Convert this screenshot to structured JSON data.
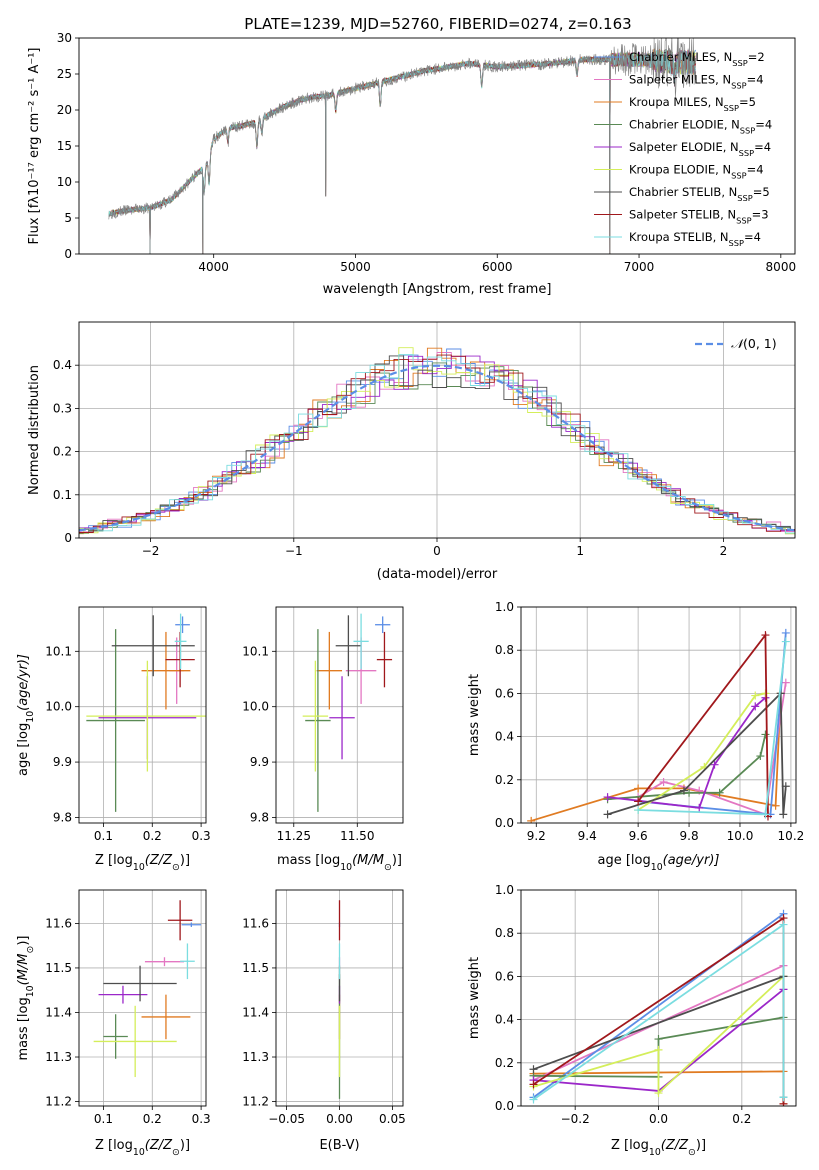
{
  "figure": {
    "title": "PLATE=1239, MJD=52760, FIBERID=0274, z=0.163"
  },
  "colors": {
    "Chabrier MILES": "#5b8ee6",
    "Salpeter MILES": "#e377c2",
    "Kroupa MILES": "#e07b22",
    "Chabrier ELODIE": "#5a8a55",
    "Salpeter ELODIE": "#9b27c9",
    "Kroupa ELODIE": "#d4ee5a",
    "Chabrier STELIB": "#4d4d4d",
    "Salpeter STELIB": "#a0181c",
    "Kroupa STELIB": "#7bdde0",
    "data": "#808080"
  },
  "chart_data": [
    {
      "id": "spectrum",
      "type": "line",
      "title": "PLATE=1239, MJD=52760, FIBERID=0274, z=0.163",
      "xlabel": "wavelength [Angstrom, rest frame]",
      "ylabel": "Flux [fλ10⁻¹⁷ erg cm⁻² s⁻¹ A⁻¹]",
      "xlim": [
        3050,
        8100
      ],
      "ylim": [
        0,
        30
      ],
      "xticks": [
        4000,
        5000,
        6000,
        7000,
        8000
      ],
      "yticks": [
        0,
        5,
        10,
        15,
        20,
        25,
        30
      ],
      "grid": false,
      "legend": "upper-right",
      "legend_entries": [
        {
          "name": "Chabrier MILES",
          "label": "Chabrier MILES, N",
          "sub": "SSP",
          "n": "=2"
        },
        {
          "name": "Salpeter MILES",
          "label": "Salpeter MILES, N",
          "sub": "SSP",
          "n": "=4"
        },
        {
          "name": "Kroupa MILES",
          "label": "Kroupa MILES, N",
          "sub": "SSP",
          "n": "=5"
        },
        {
          "name": "Chabrier ELODIE",
          "label": "Chabrier ELODIE, N",
          "sub": "SSP",
          "n": "=4"
        },
        {
          "name": "Salpeter ELODIE",
          "label": "Salpeter ELODIE, N",
          "sub": "SSP",
          "n": "=4"
        },
        {
          "name": "Kroupa ELODIE",
          "label": "Kroupa ELODIE, N",
          "sub": "SSP",
          "n": "=4"
        },
        {
          "name": "Chabrier STELIB",
          "label": "Chabrier STELIB, N",
          "sub": "SSP",
          "n": "=5"
        },
        {
          "name": "Salpeter STELIB",
          "label": "Salpeter STELIB, N",
          "sub": "SSP",
          "n": "=3"
        },
        {
          "name": "Kroupa STELIB",
          "label": "Kroupa STELIB, N",
          "sub": "SSP",
          "n": "=4"
        }
      ],
      "continuum": [
        [
          3260,
          5.6
        ],
        [
          3400,
          6.1
        ],
        [
          3550,
          6.4
        ],
        [
          3700,
          7.5
        ],
        [
          3800,
          9.5
        ],
        [
          3900,
          11.5
        ],
        [
          3950,
          12.5
        ],
        [
          4000,
          16
        ],
        [
          4100,
          17.5
        ],
        [
          4200,
          17.8
        ],
        [
          4300,
          18.3
        ],
        [
          4400,
          19.5
        ],
        [
          4500,
          20.5
        ],
        [
          4600,
          21.3
        ],
        [
          4700,
          21.8
        ],
        [
          4800,
          22.0
        ],
        [
          4900,
          22.5
        ],
        [
          5000,
          23.0
        ],
        [
          5100,
          23.5
        ],
        [
          5200,
          24.0
        ],
        [
          5300,
          24.5
        ],
        [
          5400,
          25.0
        ],
        [
          5500,
          25.5
        ],
        [
          5600,
          25.8
        ],
        [
          5800,
          26.5
        ],
        [
          6000,
          26.0
        ],
        [
          6200,
          26.2
        ],
        [
          6400,
          26.5
        ],
        [
          6600,
          27.0
        ],
        [
          6800,
          27.0
        ],
        [
          7000,
          27.0
        ],
        [
          7200,
          26.7
        ],
        [
          7400,
          26.6
        ]
      ],
      "dips": [
        [
          3933,
          3.5
        ],
        [
          3968,
          4.0
        ],
        [
          4101,
          2.0
        ],
        [
          4305,
          3.5
        ],
        [
          4340,
          2.0
        ],
        [
          4861,
          2.5
        ],
        [
          5175,
          3.5
        ],
        [
          5890,
          3.0
        ],
        [
          6563,
          2.0
        ],
        [
          7250,
          2.0
        ]
      ],
      "spikes": [
        [
          3550,
          0
        ],
        [
          3922,
          0
        ],
        [
          4790,
          8
        ],
        [
          6795,
          0
        ],
        [
          7410,
          0
        ]
      ]
    },
    {
      "id": "residuals",
      "type": "histogram",
      "xlabel": "(data-model)/error",
      "ylabel": "Normed distribution",
      "xlim": [
        -2.5,
        2.5
      ],
      "ylim": [
        0,
        0.5
      ],
      "xticks": [
        -2,
        -1,
        0,
        1,
        2
      ],
      "yticks": [
        0.0,
        0.1,
        0.2,
        0.3,
        0.4
      ],
      "grid": true,
      "legend": "upper-right",
      "bin_width": 0.1,
      "reference": {
        "name": "𝒩(0,1)",
        "label_main": "𝒩",
        "label_rest": "(0, 1)",
        "mean": 0,
        "sigma": 1,
        "color": "#5b8ee6"
      }
    },
    {
      "id": "age-vs-Z",
      "type": "scatter",
      "xlabel_main": "Z [log",
      "xlabel_sub": "10",
      "xlabel_rest": "(Z/Z",
      "xlabel_sun": "⊙",
      "xlabel_end": ")]",
      "ylabel_main": "age  [log",
      "ylabel_sub": "10",
      "ylabel_rest": "(age/yr)]",
      "xlim": [
        0.05,
        0.31
      ],
      "ylim": [
        9.79,
        10.18
      ],
      "xticks": [
        "0.1",
        "0.2",
        "0.3"
      ],
      "yticks": [
        "9.8",
        "9.9",
        "10.0",
        "10.1"
      ],
      "grid": true,
      "points": [
        {
          "series": "Chabrier MILES",
          "x": 0.262,
          "y": 10.148,
          "xerr": 0.015,
          "yerr": 0.015
        },
        {
          "series": "Salpeter MILES",
          "x": 0.25,
          "y": 10.065,
          "xerr": 0.015,
          "yerr": 0.06
        },
        {
          "series": "Kroupa MILES",
          "x": 0.228,
          "y": 10.065,
          "xerr": 0.05,
          "yerr": 0.07
        },
        {
          "series": "Chabrier ELODIE",
          "x": 0.125,
          "y": 9.975,
          "xerr": 0.06,
          "yerr": 0.165
        },
        {
          "series": "Salpeter ELODIE",
          "x": 0.19,
          "y": 9.98,
          "xerr": 0.1,
          "yerr": 0.075
        },
        {
          "series": "Kroupa ELODIE",
          "x": 0.19,
          "y": 9.983,
          "xerr": 0.125,
          "yerr": 0.1
        },
        {
          "series": "Chabrier STELIB",
          "x": 0.202,
          "y": 10.11,
          "xerr": 0.085,
          "yerr": 0.055
        },
        {
          "series": "Salpeter STELIB",
          "x": 0.257,
          "y": 10.085,
          "xerr": 0.03,
          "yerr": 0.05
        },
        {
          "series": "Kroupa STELIB",
          "x": 0.258,
          "y": 10.118,
          "xerr": 0.012,
          "yerr": 0.05
        }
      ]
    },
    {
      "id": "age-vs-mass",
      "type": "scatter",
      "xlabel_main": "mass [log",
      "xlabel_sub": "10",
      "xlabel_rest": "(M/M",
      "xlabel_sun": "⊙",
      "xlabel_end": ")]",
      "xlim": [
        11.18,
        11.68
      ],
      "ylim": [
        9.79,
        10.18
      ],
      "xticks": [
        "11.25",
        "11.50"
      ],
      "yticks": [
        "9.8",
        "9.9",
        "10.0",
        "10.1"
      ],
      "grid": true,
      "points": [
        {
          "series": "Chabrier MILES",
          "x": 11.6,
          "y": 10.148,
          "xerr": 0.03,
          "yerr": 0.015
        },
        {
          "series": "Salpeter MILES",
          "x": 11.515,
          "y": 10.065,
          "xerr": 0.06,
          "yerr": 0.06
        },
        {
          "series": "Kroupa MILES",
          "x": 11.39,
          "y": 10.065,
          "xerr": 0.05,
          "yerr": 0.07
        },
        {
          "series": "Chabrier ELODIE",
          "x": 11.345,
          "y": 9.975,
          "xerr": 0.05,
          "yerr": 0.165
        },
        {
          "series": "Salpeter ELODIE",
          "x": 11.44,
          "y": 9.98,
          "xerr": 0.05,
          "yerr": 0.075
        },
        {
          "series": "Kroupa ELODIE",
          "x": 11.335,
          "y": 9.983,
          "xerr": 0.05,
          "yerr": 0.1
        },
        {
          "series": "Chabrier STELIB",
          "x": 11.465,
          "y": 10.11,
          "xerr": 0.05,
          "yerr": 0.055
        },
        {
          "series": "Salpeter STELIB",
          "x": 11.607,
          "y": 10.085,
          "xerr": 0.03,
          "yerr": 0.05
        },
        {
          "series": "Kroupa STELIB",
          "x": 11.515,
          "y": 10.118,
          "xerr": 0.03,
          "yerr": 0.05
        }
      ]
    },
    {
      "id": "weight-vs-age",
      "type": "line",
      "xlabel_main": "age  [log",
      "xlabel_sub": "10",
      "xlabel_rest": "(age/yr)]",
      "ylabel": "mass weight",
      "xlim": [
        9.14,
        10.22
      ],
      "ylim": [
        0,
        1
      ],
      "xticks": [
        "9.2",
        "9.4",
        "9.6",
        "9.8",
        "10.0",
        "10.2"
      ],
      "yticks": [
        "0.0",
        "0.2",
        "0.4",
        "0.6",
        "0.8",
        "1.0"
      ],
      "grid": true,
      "series": [
        {
          "name": "Kroupa MILES",
          "x": [
            9.18,
            9.6,
            9.78,
            10.14,
            10.16
          ],
          "y": [
            0.01,
            0.16,
            0.16,
            0.08,
            0.6
          ]
        },
        {
          "name": "Salpeter MILES",
          "x": [
            9.6,
            9.7,
            9.84,
            10.1,
            10.18
          ],
          "y": [
            0.12,
            0.19,
            0.15,
            0.04,
            0.65
          ]
        },
        {
          "name": "Chabrier MILES",
          "x": [
            9.6,
            10.12,
            10.18
          ],
          "y": [
            0.1,
            0.04,
            0.88
          ]
        },
        {
          "name": "Chabrier ELODIE",
          "x": [
            9.48,
            9.8,
            9.92,
            10.08,
            10.1
          ],
          "y": [
            0.11,
            0.14,
            0.14,
            0.31,
            0.41
          ]
        },
        {
          "name": "Salpeter ELODIE",
          "x": [
            9.48,
            9.84,
            9.9,
            10.06,
            10.1
          ],
          "y": [
            0.12,
            0.07,
            0.27,
            0.54,
            0.58
          ]
        },
        {
          "name": "Kroupa ELODIE",
          "x": [
            9.6,
            9.86,
            10.06,
            10.1
          ],
          "y": [
            0.06,
            0.26,
            0.59,
            0.6
          ]
        },
        {
          "name": "Chabrier STELIB",
          "x": [
            9.48,
            9.78,
            10.16,
            10.17,
            10.18
          ],
          "y": [
            0.04,
            0.15,
            0.6,
            0.04,
            0.17
          ]
        },
        {
          "name": "Salpeter STELIB",
          "x": [
            9.6,
            10.1,
            10.11
          ],
          "y": [
            0.1,
            0.87,
            0.03
          ]
        },
        {
          "name": "Kroupa STELIB",
          "x": [
            9.6,
            10.1,
            10.18
          ],
          "y": [
            0.06,
            0.04,
            0.84
          ]
        }
      ]
    },
    {
      "id": "mass-vs-Z",
      "type": "scatter",
      "xlabel_main": "Z [log",
      "xlabel_sub": "10",
      "xlabel_rest": "(Z/Z",
      "xlabel_sun": "⊙",
      "xlabel_end": ")]",
      "ylabel_main": "mass [log",
      "ylabel_sub": "10",
      "ylabel_rest": "(M/M",
      "ylabel_sun": "⊙",
      "ylabel_end": ")]",
      "xlim": [
        0.05,
        0.31
      ],
      "ylim": [
        11.19,
        11.675
      ],
      "xticks": [
        "0.1",
        "0.2",
        "0.3"
      ],
      "yticks": [
        "11.2",
        "11.3",
        "11.4",
        "11.5",
        "11.6"
      ],
      "grid": true,
      "points": [
        {
          "series": "Chabrier MILES",
          "x": 0.28,
          "y": 11.597,
          "xerr": 0.02,
          "yerr": 0.005
        },
        {
          "series": "Salpeter MILES",
          "x": 0.225,
          "y": 11.514,
          "xerr": 0.04,
          "yerr": 0.01
        },
        {
          "series": "Kroupa MILES",
          "x": 0.228,
          "y": 11.39,
          "xerr": 0.05,
          "yerr": 0.05
        },
        {
          "series": "Chabrier ELODIE",
          "x": 0.125,
          "y": 11.346,
          "xerr": 0.025,
          "yerr": 0.05
        },
        {
          "series": "Salpeter ELODIE",
          "x": 0.14,
          "y": 11.44,
          "xerr": 0.05,
          "yerr": 0.02
        },
        {
          "series": "Kroupa ELODIE",
          "x": 0.165,
          "y": 11.335,
          "xerr": 0.085,
          "yerr": 0.08
        },
        {
          "series": "Chabrier STELIB",
          "x": 0.175,
          "y": 11.465,
          "xerr": 0.075,
          "yerr": 0.04
        },
        {
          "series": "Salpeter STELIB",
          "x": 0.257,
          "y": 11.607,
          "xerr": 0.025,
          "yerr": 0.045
        },
        {
          "series": "Kroupa STELIB",
          "x": 0.272,
          "y": 11.515,
          "xerr": 0.015,
          "yerr": 0.04
        }
      ]
    },
    {
      "id": "mass-vs-EBV",
      "type": "scatter",
      "xlabel": "E(B-V)",
      "xlim": [
        -0.06,
        0.06
      ],
      "ylim": [
        11.19,
        11.675
      ],
      "xticks": [
        "−0.05",
        "0.00",
        "0.05"
      ],
      "yticks": [
        "11.2",
        "11.3",
        "11.4",
        "11.5",
        "11.6"
      ],
      "grid": true,
      "points": [
        {
          "series": "Chabrier MILES",
          "x": 0,
          "y": 11.597,
          "xerr": 0,
          "yerr": 0.005
        },
        {
          "series": "Salpeter MILES",
          "x": 0,
          "y": 11.514,
          "xerr": 0,
          "yerr": 0.01
        },
        {
          "series": "Kroupa MILES",
          "x": 0,
          "y": 11.39,
          "xerr": 0,
          "yerr": 0.05
        },
        {
          "series": "Chabrier ELODIE",
          "x": 0,
          "y": 11.346,
          "xerr": 0,
          "yerr": 0.14
        },
        {
          "series": "Salpeter ELODIE",
          "x": 0,
          "y": 11.44,
          "xerr": 0,
          "yerr": 0.02
        },
        {
          "series": "Kroupa ELODIE",
          "x": 0,
          "y": 11.335,
          "xerr": 0,
          "yerr": 0.08
        },
        {
          "series": "Chabrier STELIB",
          "x": 0,
          "y": 11.465,
          "xerr": 0,
          "yerr": 0.04
        },
        {
          "series": "Salpeter STELIB",
          "x": 0,
          "y": 11.607,
          "xerr": 0,
          "yerr": 0.045
        },
        {
          "series": "Kroupa STELIB",
          "x": 0,
          "y": 11.515,
          "xerr": 0,
          "yerr": 0.04
        }
      ]
    },
    {
      "id": "weight-vs-Z",
      "type": "line",
      "xlabel_main": "Z [log",
      "xlabel_sub": "10",
      "xlabel_rest": "(Z/Z",
      "xlabel_sun": "⊙",
      "xlabel_end": ")]",
      "ylabel": "mass weight",
      "xlim": [
        -0.33,
        0.33
      ],
      "ylim": [
        0,
        1
      ],
      "xticks": [
        "−0.2",
        "0.0",
        "0.2"
      ],
      "yticks": [
        "0.0",
        "0.2",
        "0.4",
        "0.6",
        "0.8",
        "1.0"
      ],
      "grid": true,
      "series": [
        {
          "name": "Kroupa MILES",
          "x": [
            -0.3,
            0.0,
            0.3,
            0.3
          ],
          "y": [
            0.15,
            0.155,
            0.16,
            0.01
          ]
        },
        {
          "name": "Salpeter MILES",
          "x": [
            -0.3,
            0.3
          ],
          "y": [
            0.12,
            0.65
          ]
        },
        {
          "name": "Chabrier MILES",
          "x": [
            -0.3,
            0.3
          ],
          "y": [
            0.04,
            0.89
          ]
        },
        {
          "name": "Chabrier ELODIE",
          "x": [
            -0.3,
            0.0,
            0.0,
            0.3
          ],
          "y": [
            0.14,
            0.135,
            0.31,
            0.41
          ]
        },
        {
          "name": "Salpeter ELODIE",
          "x": [
            -0.3,
            0.0,
            0.3
          ],
          "y": [
            0.12,
            0.07,
            0.54
          ]
        },
        {
          "name": "Kroupa ELODIE",
          "x": [
            -0.3,
            0.0,
            0.0,
            0.3
          ],
          "y": [
            0.09,
            0.26,
            0.06,
            0.6
          ]
        },
        {
          "name": "Chabrier STELIB",
          "x": [
            -0.3,
            0.3,
            0.3
          ],
          "y": [
            0.17,
            0.6,
            0.04
          ]
        },
        {
          "name": "Salpeter STELIB",
          "x": [
            -0.3,
            0.3,
            0.3
          ],
          "y": [
            0.1,
            0.87,
            0.01
          ]
        },
        {
          "name": "Kroupa STELIB",
          "x": [
            -0.3,
            0.3,
            0.3
          ],
          "y": [
            0.03,
            0.84,
            0.04
          ]
        }
      ]
    }
  ]
}
